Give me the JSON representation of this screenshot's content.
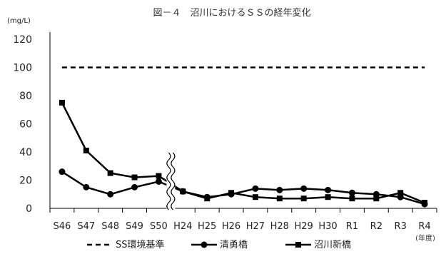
{
  "chart_data": {
    "type": "line",
    "title": "図－４　沼川におけるＳＳの経年変化",
    "ylabel": "(mg/L)",
    "xlabel": "(年度)",
    "categories": [
      "S46",
      "S47",
      "S48",
      "S49",
      "S50",
      "H24",
      "H25",
      "H26",
      "H27",
      "H28",
      "H29",
      "H30",
      "R1",
      "R2",
      "R3",
      "R4"
    ],
    "yticks": [
      0,
      20,
      40,
      60,
      80,
      100,
      120
    ],
    "ylim": [
      0,
      120
    ],
    "axis_break_after": "S50",
    "grid": false,
    "legend_position": "bottom",
    "series": [
      {
        "name": "SS環境基準",
        "style": "dashed",
        "marker": "none",
        "color": "#000000",
        "values": [
          100,
          100,
          100,
          100,
          100,
          100,
          100,
          100,
          100,
          100,
          100,
          100,
          100,
          100,
          100,
          100
        ]
      },
      {
        "name": "清勇橋",
        "style": "solid",
        "marker": "circle",
        "color": "#000000",
        "values": [
          26,
          15,
          10,
          15,
          19,
          12,
          8,
          10,
          14,
          13,
          14,
          13,
          11,
          10,
          8,
          3
        ]
      },
      {
        "name": "沼川新橋",
        "style": "solid",
        "marker": "square",
        "color": "#000000",
        "values": [
          75,
          41,
          25,
          22,
          23,
          12,
          7,
          11,
          8,
          7,
          7,
          8,
          7,
          7,
          11,
          4
        ]
      }
    ]
  }
}
